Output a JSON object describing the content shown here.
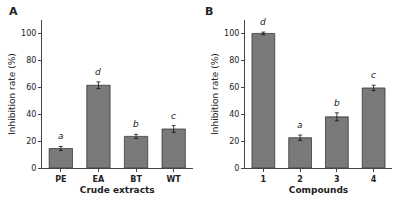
{
  "chart_data": [
    {
      "type": "bar",
      "title": "A",
      "categories": [
        "PE",
        "EA",
        "BT",
        "WT"
      ],
      "values": [
        14.5,
        61.5,
        23.5,
        29.0
      ],
      "errors": [
        1.5,
        2.5,
        1.5,
        2.5
      ],
      "annotations": [
        "a",
        "d",
        "b",
        "c"
      ],
      "xlabel": "Crude extracts",
      "ylabel": "Inhibition rate (%)",
      "ylim": [
        0,
        110
      ],
      "yticks": [
        0,
        20,
        40,
        60,
        80,
        100
      ],
      "color": "#7a7a7a",
      "grid": false
    },
    {
      "type": "bar",
      "title": "B",
      "categories": [
        "1",
        "2",
        "3",
        "4"
      ],
      "values": [
        100.0,
        22.5,
        38.0,
        59.5
      ],
      "errors": [
        1.0,
        2.0,
        3.0,
        2.0
      ],
      "annotations": [
        "d",
        "a",
        "b",
        "c"
      ],
      "xlabel": "Compounds",
      "ylabel": "Inhibition rate (%)",
      "ylim": [
        0,
        110
      ],
      "yticks": [
        0,
        20,
        40,
        60,
        80,
        100
      ],
      "color": "#7a7a7a",
      "grid": false
    }
  ]
}
